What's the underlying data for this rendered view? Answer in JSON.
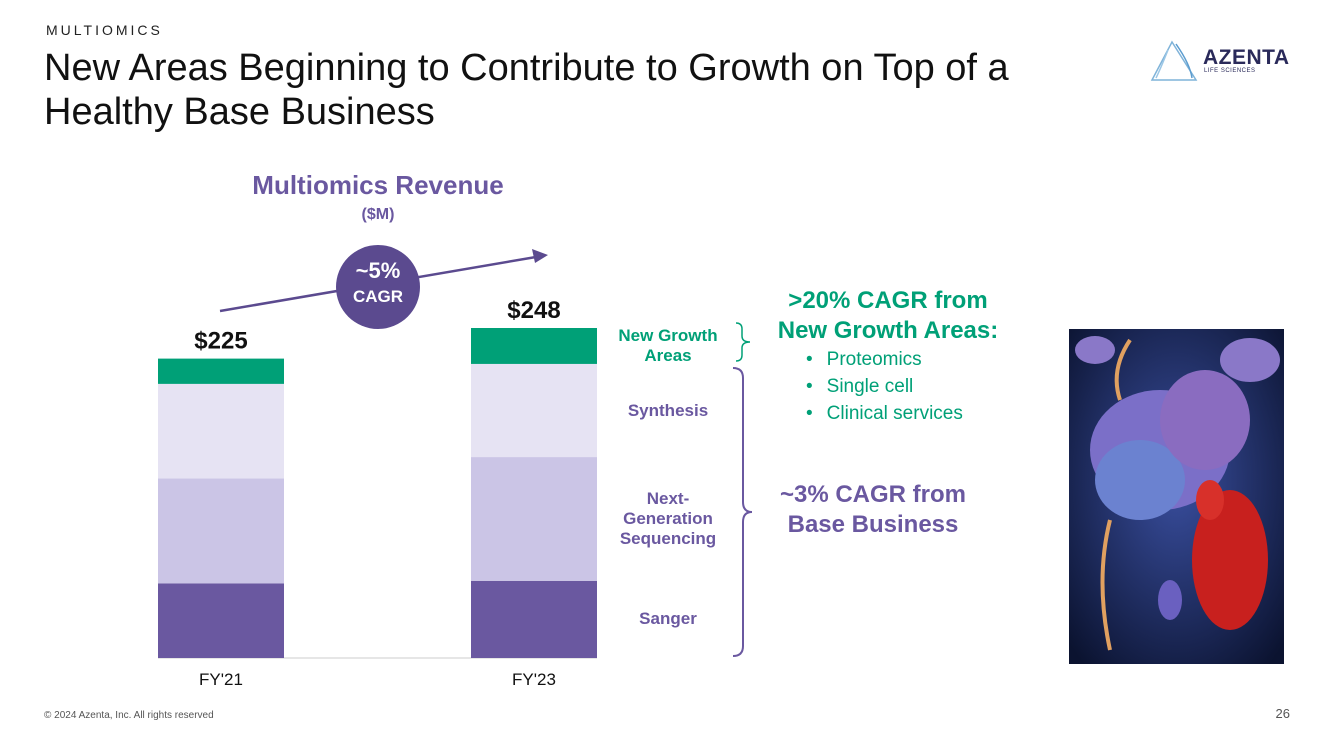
{
  "header": {
    "eyebrow": "MULTIOMICS",
    "title": "New Areas Beginning to Contribute to Growth on Top of a Healthy Base Business"
  },
  "logo": {
    "name": "AZENTA",
    "tagline": "LIFE SCIENCES"
  },
  "chart_data": {
    "type": "stacked_bar",
    "title": "Multiomics Revenue",
    "subtitle": "($M)",
    "categories": [
      "FY'21",
      "FY'23"
    ],
    "series": [
      {
        "name": "Sanger",
        "color": "#6a58a0",
        "values": [
          56,
          58
        ]
      },
      {
        "name": "Next-Generation Sequencing",
        "color": "#cbc5e6",
        "values": [
          79,
          93
        ]
      },
      {
        "name": "Synthesis",
        "color": "#e6e3f3",
        "values": [
          71,
          70
        ]
      },
      {
        "name": "New Growth Areas",
        "color": "#00a077",
        "values": [
          19,
          27
        ]
      }
    ],
    "totals": [
      225,
      248
    ],
    "total_labels": [
      "$225",
      "$248"
    ],
    "cagr_badge": {
      "value": "~5%",
      "label": "CAGR"
    }
  },
  "notes": {
    "growth_title": ">20% CAGR from New Growth Areas:",
    "growth_items": [
      "Proteomics",
      "Single cell",
      "Clinical services"
    ],
    "base_title": "~3% CAGR from Base Business"
  },
  "footer": {
    "copyright": "© 2024 Azenta, Inc.  All rights reserved",
    "page": "26"
  }
}
